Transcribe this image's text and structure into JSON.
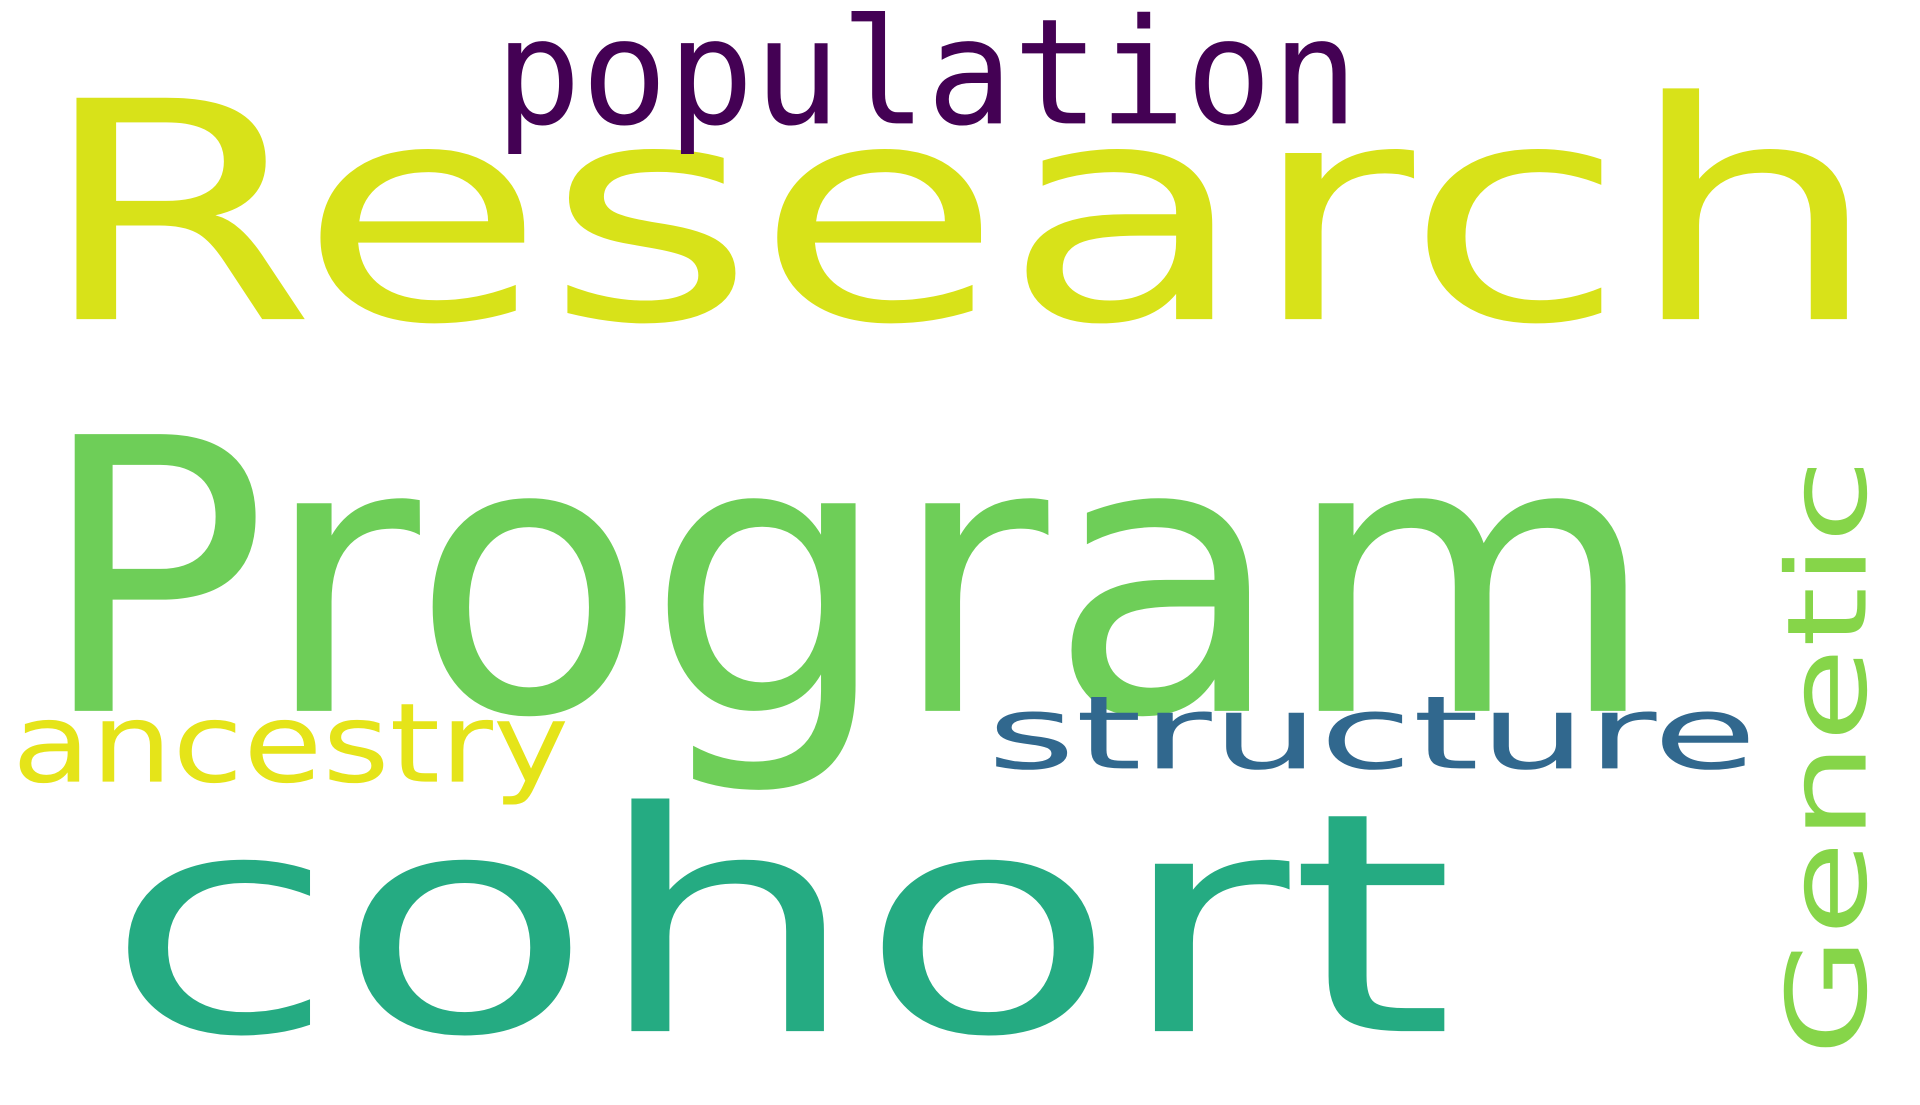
{
  "words": [
    {
      "key": "research",
      "text": "Research",
      "color": "#d8e219"
    },
    {
      "key": "program",
      "text": "Program",
      "color": "#6ece58"
    },
    {
      "key": "cohort",
      "text": "cohort",
      "color": "#25ab82"
    },
    {
      "key": "population",
      "text": "population",
      "color": "#440154"
    },
    {
      "key": "structure",
      "text": "structure",
      "color": "#31688e"
    },
    {
      "key": "ancestry",
      "text": "ancestry",
      "color": "#e5e419"
    },
    {
      "key": "genetic",
      "text": "Genetic",
      "color": "#86d549",
      "orientation": "vertical"
    }
  ]
}
